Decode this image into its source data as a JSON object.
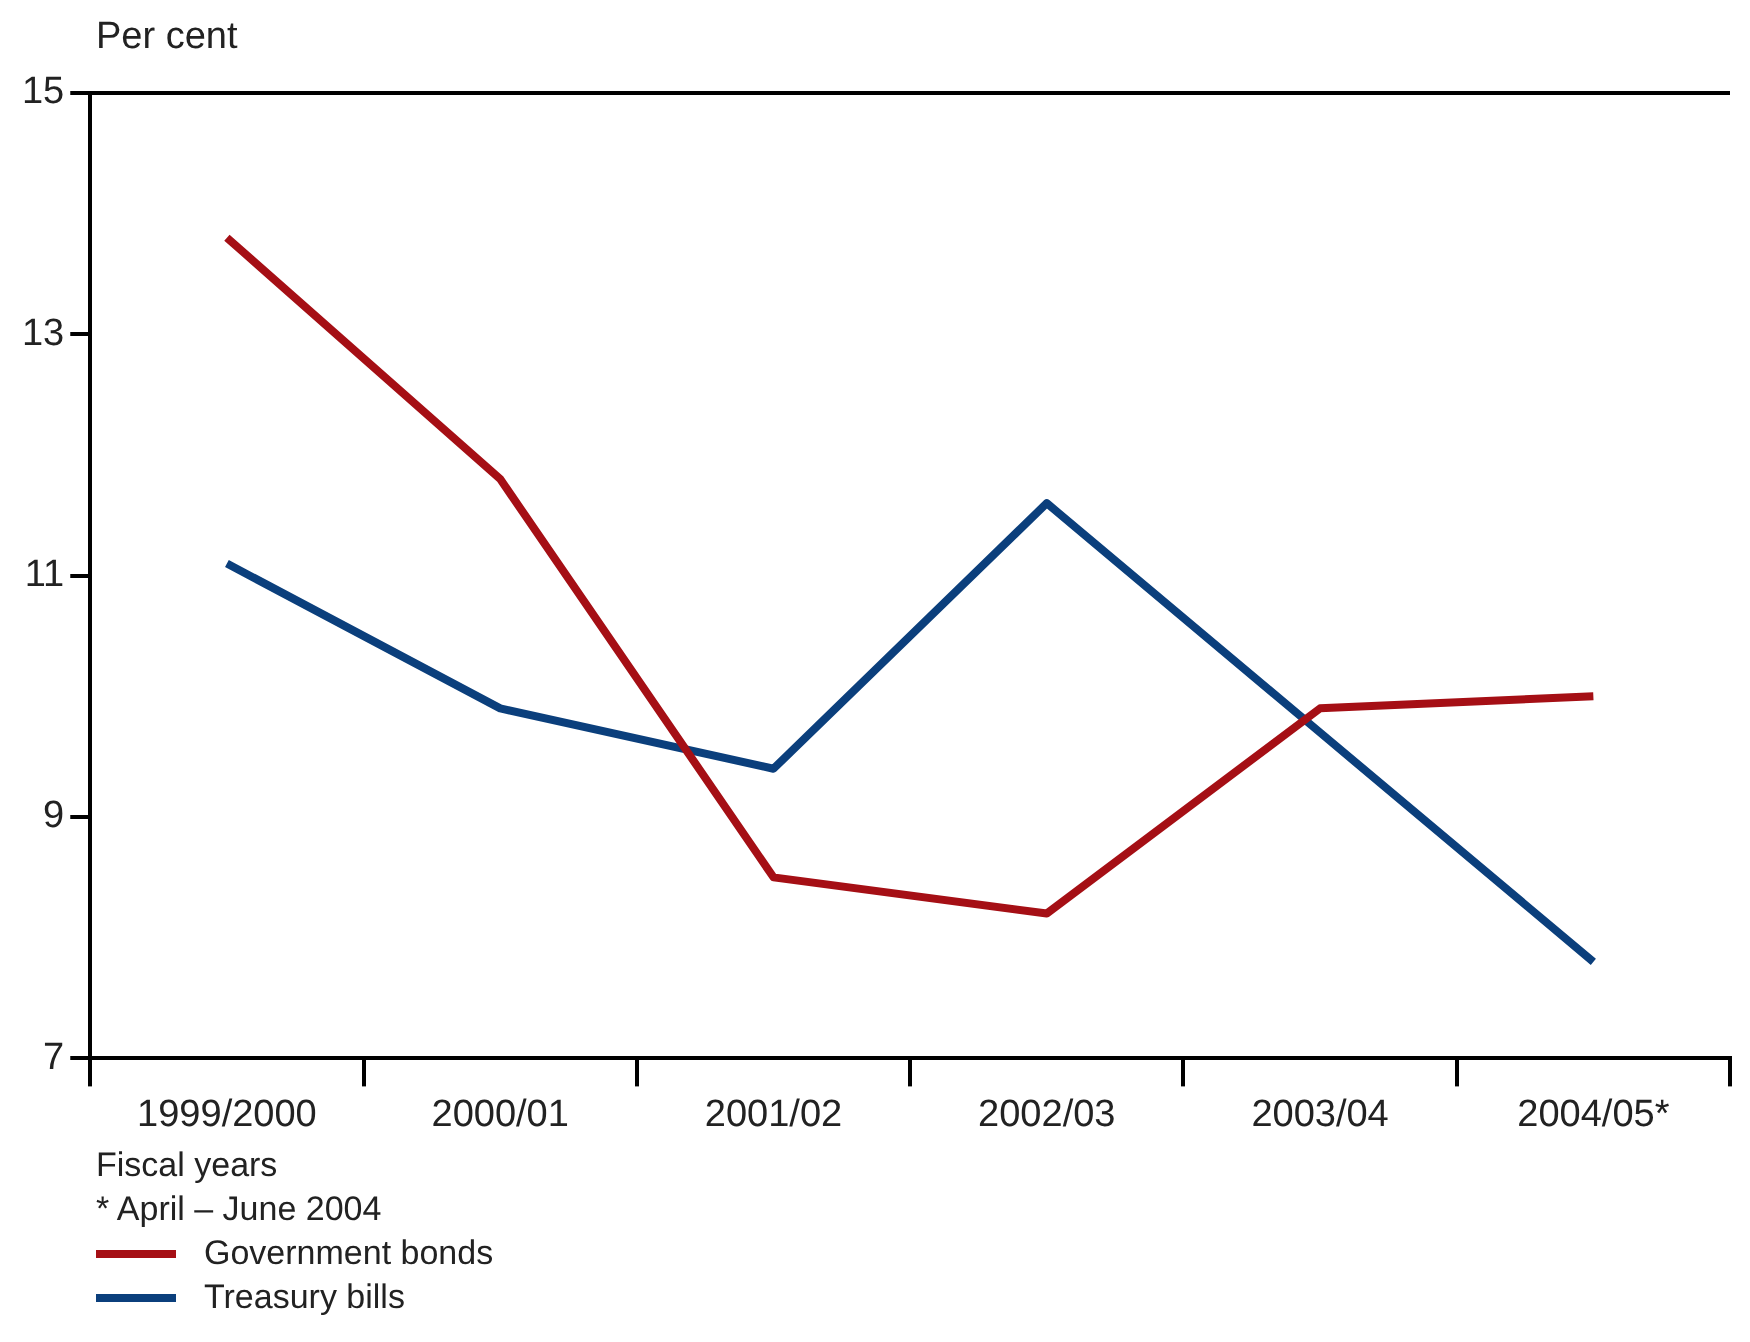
{
  "chart_data": {
    "type": "line",
    "ylabel": "Per cent",
    "xlabel": "Fiscal years",
    "annotations": [
      "* April – June 2004"
    ],
    "categories": [
      "1999/2000",
      "2000/01",
      "2001/02",
      "2002/03",
      "2003/04",
      "2004/05*"
    ],
    "series": [
      {
        "name": "Government bonds",
        "color": "#a50f15",
        "values": [
          13.8,
          11.8,
          8.5,
          8.2,
          9.9,
          10.0
        ]
      },
      {
        "name": "Treasury bills",
        "color": "#0b3f7c",
        "values": [
          11.1,
          9.9,
          9.4,
          11.6,
          9.7,
          7.8
        ]
      }
    ],
    "ylim": [
      7,
      15
    ],
    "yticks": [
      7,
      9,
      11,
      13,
      15
    ],
    "grid": false,
    "legend": "bottom",
    "marker": "none",
    "line_style": "solid"
  }
}
